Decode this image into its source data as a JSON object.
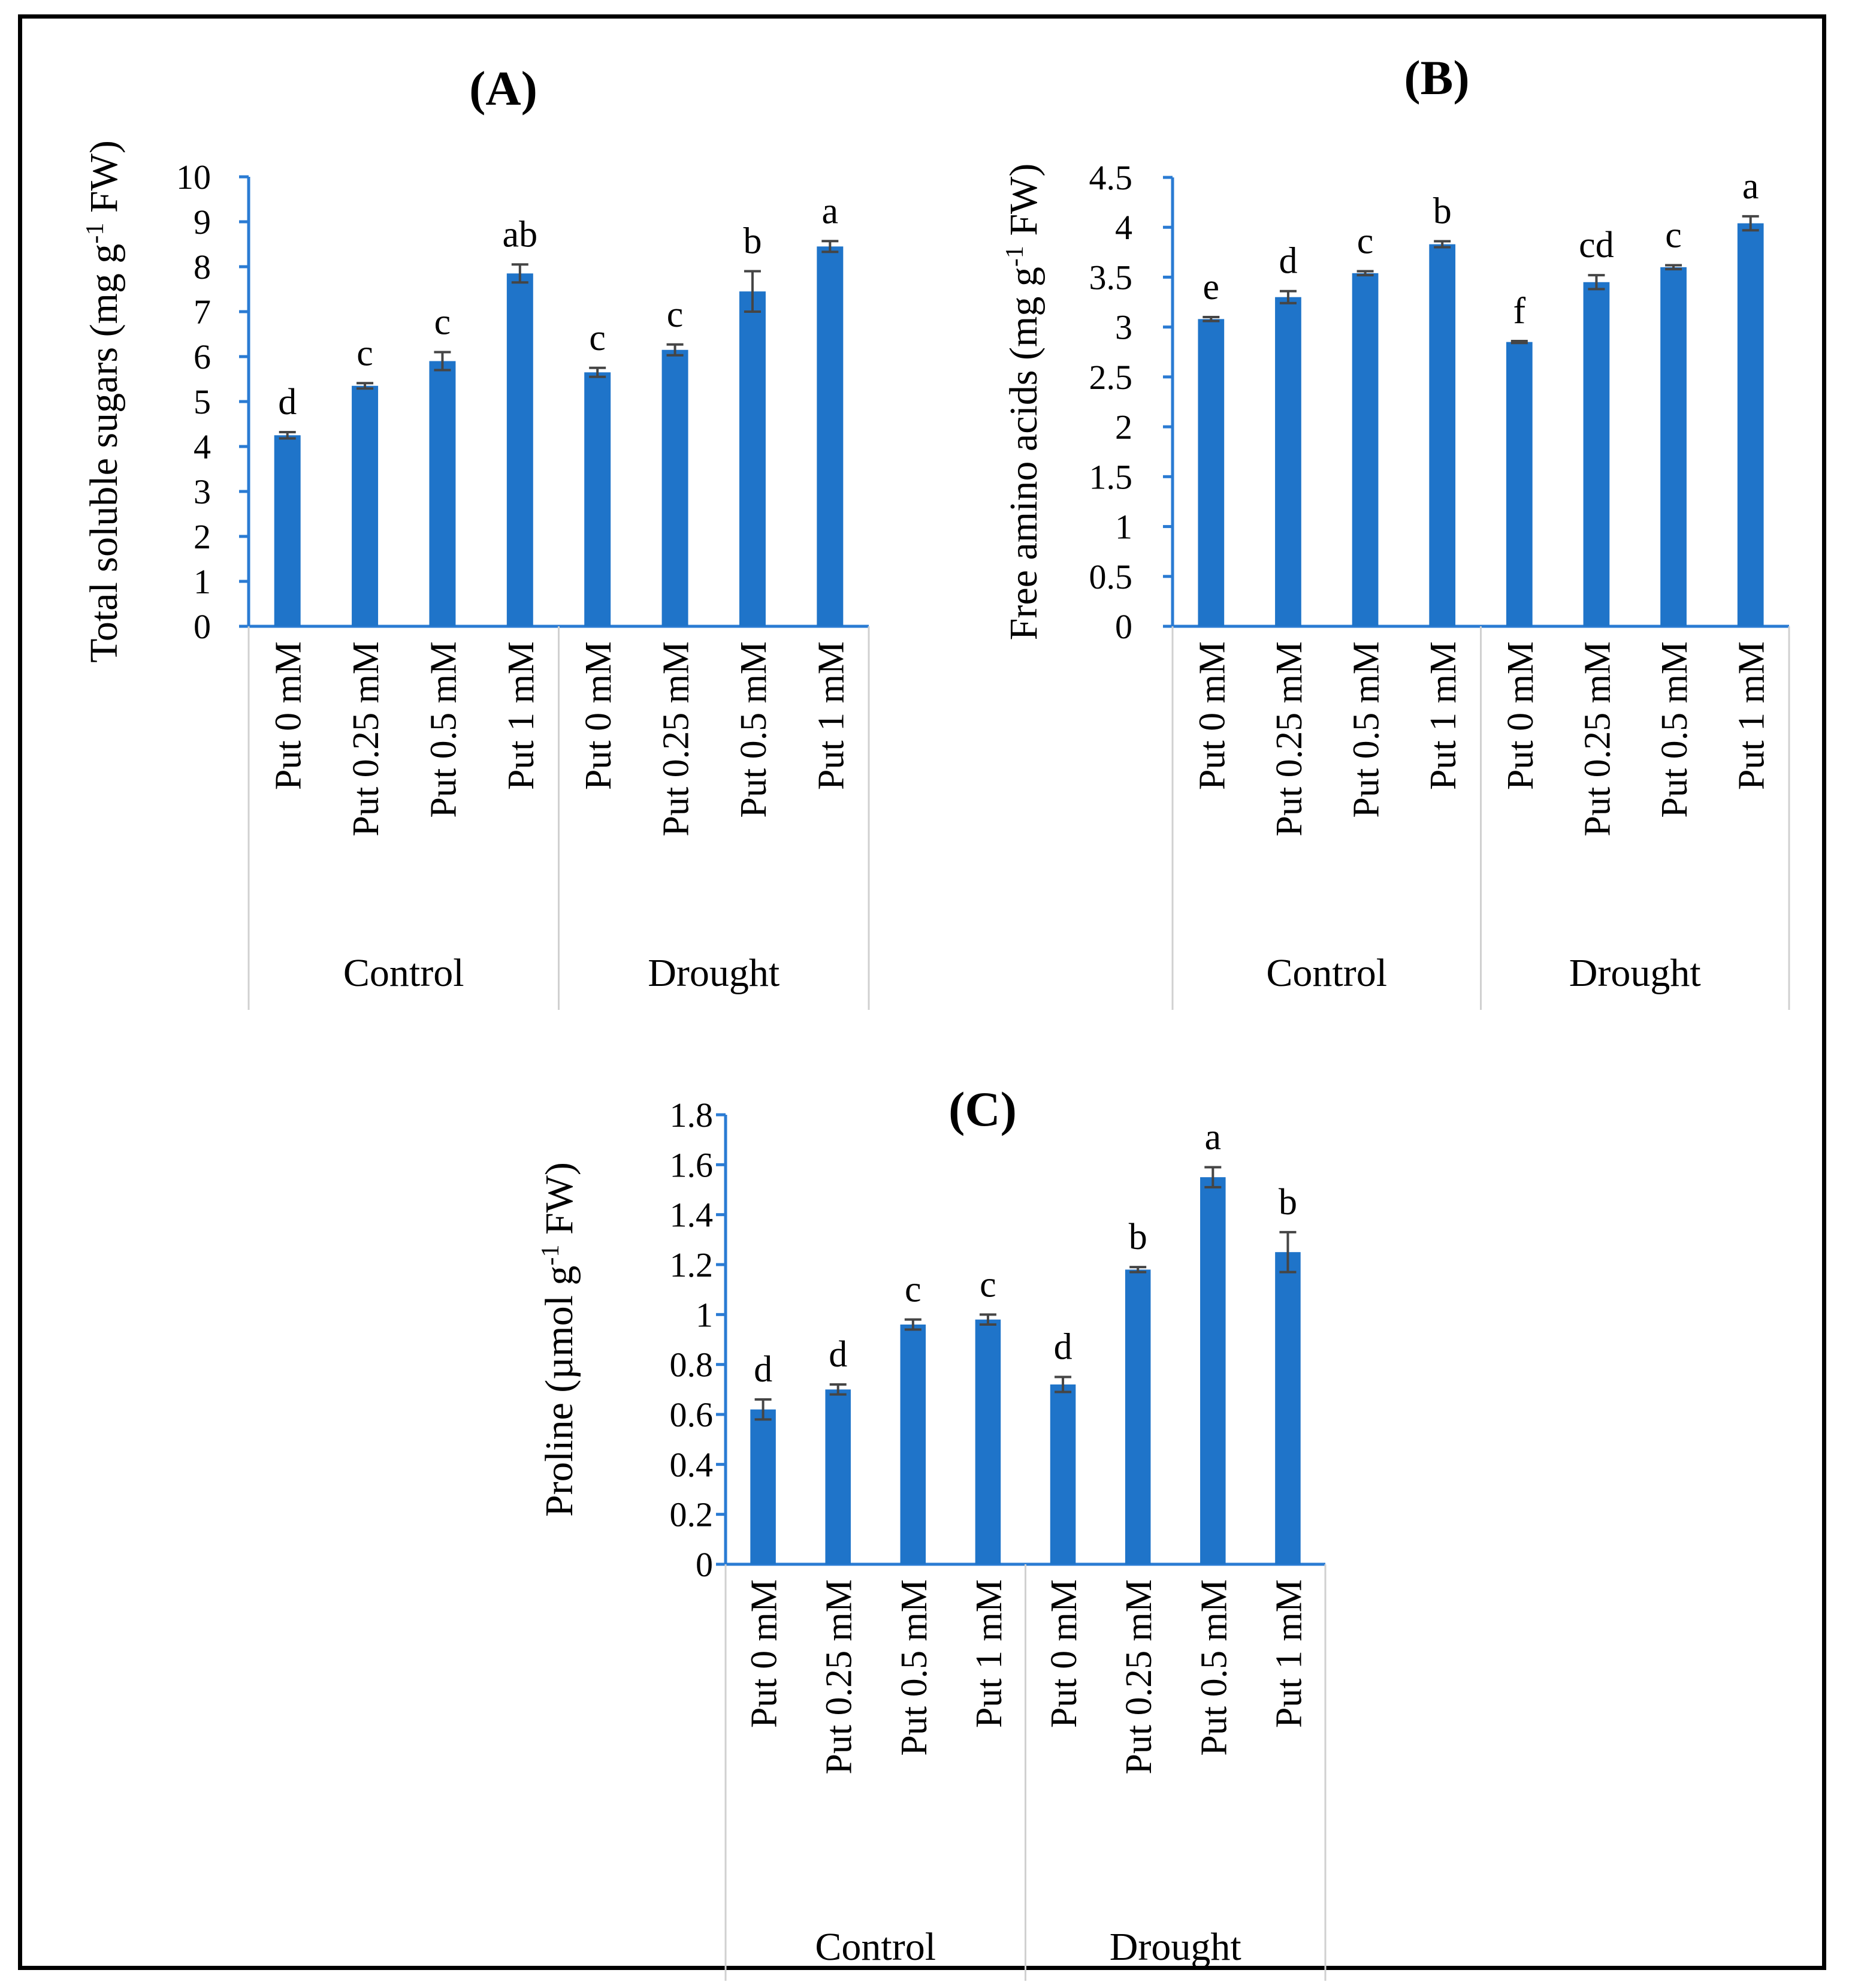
{
  "colors": {
    "bar": "#1f74c9",
    "axis": "#2a7bd3",
    "error": "#454545",
    "category_lines": "#d0d0d0"
  },
  "chart_data": [
    {
      "type": "bar",
      "title": "(A)",
      "ylabel": "Total soluble sugars (mg g-1 FW)",
      "ylabel_parts": [
        "Total soluble sugars (mg g",
        "-1",
        " FW)"
      ],
      "ylim": [
        0,
        10
      ],
      "yticks": [
        "0",
        "1",
        "2",
        "3",
        "4",
        "5",
        "6",
        "7",
        "8",
        "9",
        "10"
      ],
      "groups": [
        "Control",
        "Drought"
      ],
      "categories": [
        "Put 0 mM",
        "Put 0.25 mM",
        "Put 0.5 mM",
        "Put 1 mM",
        "Put 0 mM",
        "Put 0.25 mM",
        "Put 0.5 mM",
        "Put 1 mM"
      ],
      "values": [
        4.25,
        5.35,
        5.9,
        7.85,
        5.65,
        6.15,
        7.45,
        8.45
      ],
      "errors": [
        0.07,
        0.06,
        0.2,
        0.2,
        0.1,
        0.12,
        0.45,
        0.12
      ],
      "letters": [
        "d",
        "c",
        "c",
        "ab",
        "c",
        "c",
        "b",
        "a"
      ],
      "grid": false,
      "legend": "none"
    },
    {
      "type": "bar",
      "title": "(B)",
      "ylabel": "Free amino acids (mg g-1 FW)",
      "ylabel_parts": [
        "Free amino acids (mg g",
        "-1",
        " FW)"
      ],
      "ylim": [
        0,
        4.5
      ],
      "yticks": [
        "0",
        "0.5",
        "1",
        "1.5",
        "2",
        "2.5",
        "3",
        "3.5",
        "4",
        "4.5"
      ],
      "groups": [
        "Control",
        "Drought"
      ],
      "categories": [
        "Put 0 mM",
        "Put 0.25 mM",
        "Put 0.5 mM",
        "Put 1 mM",
        "Put 0 mM",
        "Put 0.25 mM",
        "Put 0.5 mM",
        "Put 1 mM"
      ],
      "values": [
        3.08,
        3.3,
        3.54,
        3.83,
        2.85,
        3.45,
        3.6,
        4.04
      ],
      "errors": [
        0.02,
        0.06,
        0.02,
        0.03,
        0.01,
        0.07,
        0.02,
        0.07
      ],
      "letters": [
        "e",
        "d",
        "c",
        "b",
        "f",
        "cd",
        "c",
        "a"
      ],
      "grid": false,
      "legend": "none"
    },
    {
      "type": "bar",
      "title": "(C)",
      "ylabel": "Proline (µmol g-1 FW)",
      "ylabel_parts": [
        "Proline (µmol g",
        "-1",
        " FW)"
      ],
      "ylim": [
        0,
        1.8
      ],
      "yticks": [
        "0",
        "0.2",
        "0.4",
        "0.6",
        "0.8",
        "1",
        "1.2",
        "1.4",
        "1.6",
        "1.8"
      ],
      "groups": [
        "Control",
        "Drought"
      ],
      "categories": [
        "Put 0 mM",
        "Put 0.25 mM",
        "Put 0.5 mM",
        "Put 1 mM",
        "Put 0 mM",
        "Put 0.25 mM",
        "Put 0.5 mM",
        "Put 1 mM"
      ],
      "values": [
        0.62,
        0.7,
        0.96,
        0.98,
        0.72,
        1.18,
        1.55,
        1.25
      ],
      "errors": [
        0.04,
        0.02,
        0.02,
        0.02,
        0.03,
        0.01,
        0.04,
        0.08
      ],
      "letters": [
        "d",
        "d",
        "c",
        "c",
        "d",
        "b",
        "a",
        "b"
      ],
      "grid": false,
      "legend": "none"
    }
  ]
}
